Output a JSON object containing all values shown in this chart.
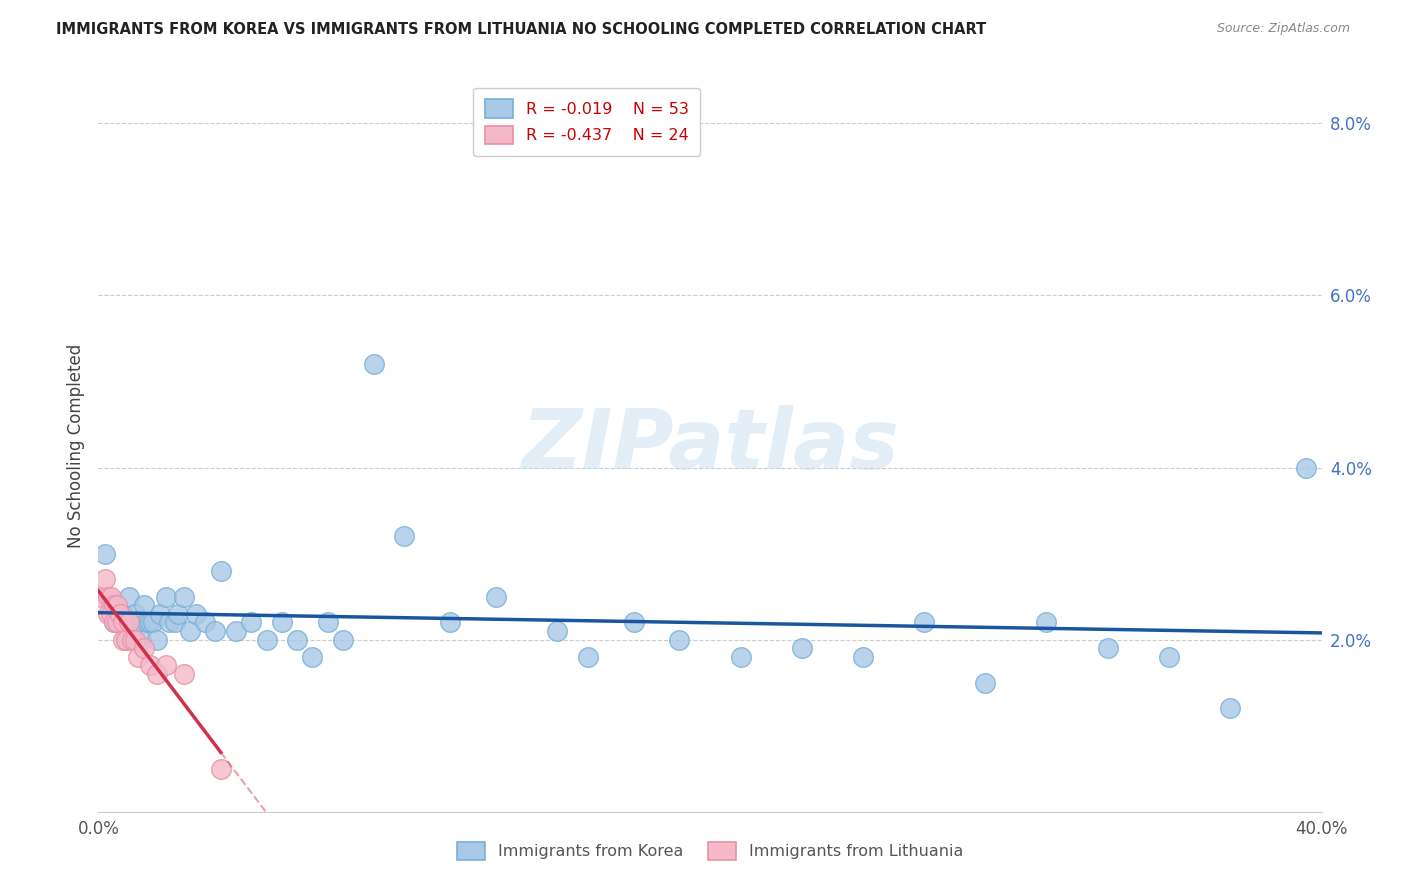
{
  "title": "IMMIGRANTS FROM KOREA VS IMMIGRANTS FROM LITHUANIA NO SCHOOLING COMPLETED CORRELATION CHART",
  "source": "Source: ZipAtlas.com",
  "ylabel": "No Schooling Completed",
  "xlim": [
    0.0,
    0.4
  ],
  "ylim": [
    0.0,
    0.085
  ],
  "korea_R": "-0.019",
  "korea_N": "53",
  "lithuania_R": "-0.437",
  "lithuania_N": "24",
  "korea_color": "#a8c8e8",
  "korea_edge_color": "#7aafd4",
  "korea_line_color": "#1a56a0",
  "lithuania_color": "#f4b8c8",
  "lithuania_edge_color": "#e890a8",
  "lithuania_line_color": "#d0304a",
  "watermark": "ZIPatlas",
  "background_color": "#ffffff",
  "grid_color": "#cccccc",
  "right_tick_color": "#4472c4",
  "korea_scatter_x": [
    0.002,
    0.005,
    0.006,
    0.007,
    0.008,
    0.009,
    0.01,
    0.011,
    0.012,
    0.013,
    0.014,
    0.015,
    0.016,
    0.017,
    0.018,
    0.019,
    0.02,
    0.022,
    0.023,
    0.025,
    0.026,
    0.028,
    0.03,
    0.032,
    0.035,
    0.038,
    0.04,
    0.045,
    0.05,
    0.055,
    0.06,
    0.065,
    0.07,
    0.075,
    0.08,
    0.09,
    0.1,
    0.115,
    0.13,
    0.15,
    0.16,
    0.175,
    0.19,
    0.21,
    0.23,
    0.25,
    0.27,
    0.29,
    0.31,
    0.33,
    0.35,
    0.37,
    0.395
  ],
  "korea_scatter_y": [
    0.03,
    0.022,
    0.022,
    0.023,
    0.023,
    0.02,
    0.025,
    0.021,
    0.023,
    0.022,
    0.02,
    0.024,
    0.022,
    0.022,
    0.022,
    0.02,
    0.023,
    0.025,
    0.022,
    0.022,
    0.023,
    0.025,
    0.021,
    0.023,
    0.022,
    0.021,
    0.028,
    0.021,
    0.022,
    0.02,
    0.022,
    0.02,
    0.018,
    0.022,
    0.02,
    0.052,
    0.032,
    0.022,
    0.025,
    0.021,
    0.018,
    0.022,
    0.02,
    0.018,
    0.019,
    0.018,
    0.022,
    0.015,
    0.022,
    0.019,
    0.018,
    0.012,
    0.04
  ],
  "lithuania_scatter_x": [
    0.001,
    0.002,
    0.003,
    0.003,
    0.004,
    0.004,
    0.005,
    0.005,
    0.006,
    0.006,
    0.007,
    0.008,
    0.008,
    0.009,
    0.01,
    0.011,
    0.012,
    0.013,
    0.015,
    0.017,
    0.019,
    0.022,
    0.028,
    0.04
  ],
  "lithuania_scatter_y": [
    0.025,
    0.027,
    0.023,
    0.025,
    0.023,
    0.025,
    0.022,
    0.024,
    0.022,
    0.024,
    0.023,
    0.02,
    0.022,
    0.02,
    0.022,
    0.02,
    0.02,
    0.018,
    0.019,
    0.017,
    0.016,
    0.017,
    0.016,
    0.005
  ]
}
